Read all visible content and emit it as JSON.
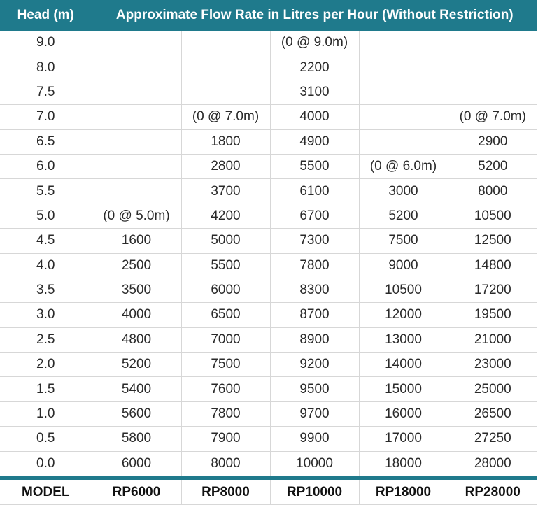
{
  "header": {
    "head_label": "Head (m)",
    "flow_label": "Approximate Flow Rate in Litres per Hour (Without Restriction)"
  },
  "rows": [
    {
      "head": "9.0",
      "rp6000": "",
      "rp8000": "",
      "rp10000": "(0 @ 9.0m)",
      "rp18000": "",
      "rp28000": ""
    },
    {
      "head": "8.0",
      "rp6000": "",
      "rp8000": "",
      "rp10000": "2200",
      "rp18000": "",
      "rp28000": ""
    },
    {
      "head": "7.5",
      "rp6000": "",
      "rp8000": "",
      "rp10000": "3100",
      "rp18000": "",
      "rp28000": ""
    },
    {
      "head": "7.0",
      "rp6000": "",
      "rp8000": "(0 @ 7.0m)",
      "rp10000": "4000",
      "rp18000": "",
      "rp28000": "(0 @ 7.0m)"
    },
    {
      "head": "6.5",
      "rp6000": "",
      "rp8000": "1800",
      "rp10000": "4900",
      "rp18000": "",
      "rp28000": "2900"
    },
    {
      "head": "6.0",
      "rp6000": "",
      "rp8000": "2800",
      "rp10000": "5500",
      "rp18000": "(0 @ 6.0m)",
      "rp28000": "5200"
    },
    {
      "head": "5.5",
      "rp6000": "",
      "rp8000": "3700",
      "rp10000": "6100",
      "rp18000": "3000",
      "rp28000": "8000"
    },
    {
      "head": "5.0",
      "rp6000": "(0 @ 5.0m)",
      "rp8000": "4200",
      "rp10000": "6700",
      "rp18000": "5200",
      "rp28000": "10500"
    },
    {
      "head": "4.5",
      "rp6000": "1600",
      "rp8000": "5000",
      "rp10000": "7300",
      "rp18000": "7500",
      "rp28000": "12500"
    },
    {
      "head": "4.0",
      "rp6000": "2500",
      "rp8000": "5500",
      "rp10000": "7800",
      "rp18000": "9000",
      "rp28000": "14800"
    },
    {
      "head": "3.5",
      "rp6000": "3500",
      "rp8000": "6000",
      "rp10000": "8300",
      "rp18000": "10500",
      "rp28000": "17200"
    },
    {
      "head": "3.0",
      "rp6000": "4000",
      "rp8000": "6500",
      "rp10000": "8700",
      "rp18000": "12000",
      "rp28000": "19500"
    },
    {
      "head": "2.5",
      "rp6000": "4800",
      "rp8000": "7000",
      "rp10000": "8900",
      "rp18000": "13000",
      "rp28000": "21000"
    },
    {
      "head": "2.0",
      "rp6000": "5200",
      "rp8000": "7500",
      "rp10000": "9200",
      "rp18000": "14000",
      "rp28000": "23000"
    },
    {
      "head": "1.5",
      "rp6000": "5400",
      "rp8000": "7600",
      "rp10000": "9500",
      "rp18000": "15000",
      "rp28000": "25000"
    },
    {
      "head": "1.0",
      "rp6000": "5600",
      "rp8000": "7800",
      "rp10000": "9700",
      "rp18000": "16000",
      "rp28000": "26500"
    },
    {
      "head": "0.5",
      "rp6000": "5800",
      "rp8000": "7900",
      "rp10000": "9900",
      "rp18000": "17000",
      "rp28000": "27250"
    },
    {
      "head": "0.0",
      "rp6000": "6000",
      "rp8000": "8000",
      "rp10000": "10000",
      "rp18000": "18000",
      "rp28000": "28000"
    }
  ],
  "footer": {
    "model_label": "MODEL",
    "models": [
      "RP6000",
      "RP8000",
      "RP10000",
      "RP18000",
      "RP28000"
    ]
  },
  "colors": {
    "header_bg": "#1f7a8c",
    "header_text": "#ffffff",
    "grid_line": "#d7d7d7"
  }
}
